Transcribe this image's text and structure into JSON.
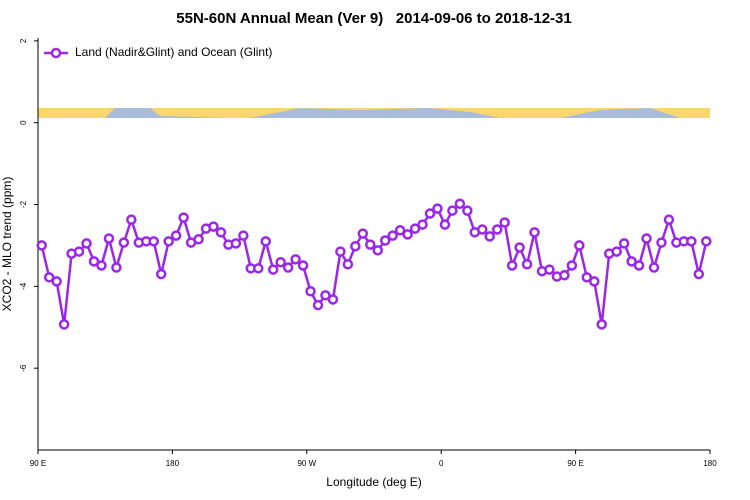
{
  "chart_data": {
    "type": "line",
    "title": "55N-60N Annual Mean (Ver 9)   2014-09-06 to 2018-12-31",
    "xlabel": "Longitude (deg E)",
    "ylabel": "XCO2 - MLO trend (ppm)",
    "xlim": [
      90,
      540
    ],
    "xticks": [
      {
        "value": 90,
        "label": "90 E"
      },
      {
        "value": 180,
        "label": "180"
      },
      {
        "value": 270,
        "label": "90 W"
      },
      {
        "value": 360,
        "label": "0"
      },
      {
        "value": 450,
        "label": "90 E"
      },
      {
        "value": 540,
        "label": "180"
      }
    ],
    "ylim": [
      -8,
      2.07
    ],
    "yticks": [
      -6,
      -4,
      -2,
      0,
      2
    ],
    "legend": "top-left",
    "x": [
      92.5,
      97.5,
      102.5,
      107.5,
      112.5,
      117.5,
      122.5,
      127.5,
      132.5,
      137.5,
      142.5,
      147.5,
      152.5,
      157.5,
      162.5,
      167.5,
      172.5,
      177.5,
      182.5,
      187.5,
      192.5,
      197.5,
      202.5,
      207.5,
      212.5,
      217.5,
      222.5,
      227.5,
      232.5,
      237.5,
      242.5,
      247.5,
      252.5,
      257.5,
      262.5,
      267.5,
      272.5,
      277.5,
      282.5,
      287.5,
      292.5,
      297.5,
      302.5,
      307.5,
      312.5,
      317.5,
      322.5,
      327.5,
      332.5,
      337.5,
      342.5,
      347.5,
      352.5,
      357.5,
      362.5,
      367.5,
      372.5,
      377.5,
      382.5,
      387.5,
      392.5,
      397.5,
      402.5,
      407.5,
      412.5,
      417.5,
      422.5,
      427.5,
      432.5,
      437.5,
      442.5,
      447.5,
      452.5,
      457.5,
      462.5,
      467.5,
      472.5,
      477.5,
      482.5,
      487.5,
      492.5,
      497.5,
      502.5,
      507.5,
      512.5,
      517.5,
      522.5,
      527.5,
      532.5,
      537.5
    ],
    "series": [
      {
        "name": "Land (Nadir&Glint) and Ocean (Glint)",
        "color": "#9b27e8",
        "values": [
          -3.0,
          -3.78,
          -3.88,
          -4.93,
          -3.2,
          -3.15,
          -2.95,
          -3.39,
          -3.49,
          -2.83,
          -3.54,
          -2.93,
          -2.37,
          -2.93,
          -2.9,
          -2.9,
          -3.7,
          -2.9,
          -2.76,
          -2.32,
          -2.93,
          -2.85,
          -2.59,
          -2.54,
          -2.68,
          -2.98,
          -2.95,
          -2.76,
          -3.56,
          -3.56,
          -2.9,
          -3.59,
          -3.41,
          -3.54,
          -3.34,
          -3.49,
          -4.12,
          -4.46,
          -4.22,
          -4.32,
          -3.15,
          -3.46,
          -3.02,
          -2.71,
          -2.98,
          -3.12,
          -2.88,
          -2.76,
          -2.63,
          -2.73,
          -2.59,
          -2.49,
          -2.22,
          -2.1,
          -2.49,
          -2.15,
          -1.98,
          -2.15,
          -2.68,
          -2.61,
          -2.78,
          -2.61,
          -2.44,
          -3.49,
          -3.05,
          -3.46,
          -2.68,
          -3.63,
          -3.59,
          -3.76,
          -3.73,
          -3.49,
          -3.0,
          -3.78,
          -3.88,
          -4.93,
          -3.2,
          -3.15,
          -2.95,
          -3.39,
          -3.49,
          -2.83,
          -3.54,
          -2.93,
          -2.37,
          -2.93,
          -2.9,
          -2.9,
          -3.7,
          -2.9
        ]
      }
    ]
  }
}
